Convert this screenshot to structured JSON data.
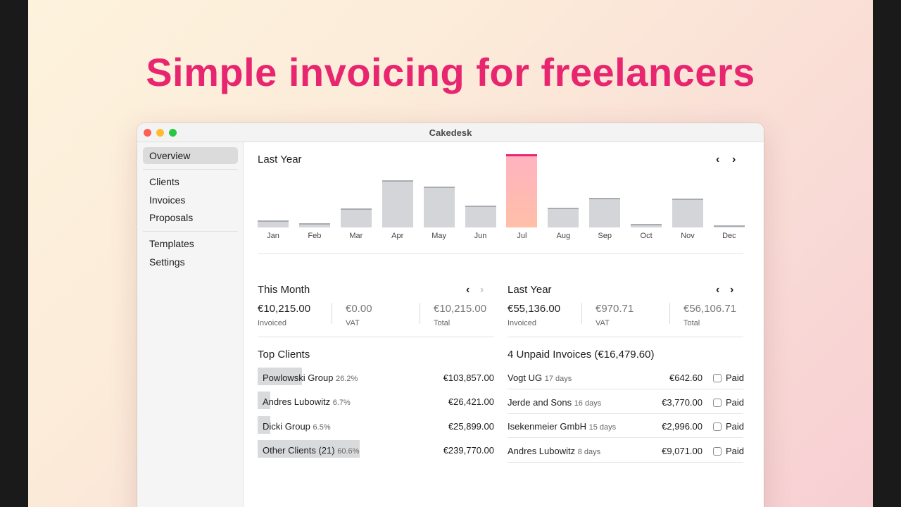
{
  "headline": "Simple invoicing for freelancers",
  "window_title": "Cakedesk",
  "sidebar": {
    "items": [
      {
        "label": "Overview",
        "active": true
      },
      {
        "label": "Clients"
      },
      {
        "label": "Invoices"
      },
      {
        "label": "Proposals"
      },
      {
        "label": "Templates"
      },
      {
        "label": "Settings"
      }
    ]
  },
  "chart": {
    "title": "Last Year",
    "prev_icon": "chevron-left-icon",
    "next_icon": "chevron-right-icon"
  },
  "chart_data": {
    "type": "bar",
    "title": "Last Year",
    "categories": [
      "Jan",
      "Feb",
      "Mar",
      "Apr",
      "May",
      "Jun",
      "Jul",
      "Aug",
      "Sep",
      "Oct",
      "Nov",
      "Dec"
    ],
    "values": [
      1000,
      600,
      2600,
      6600,
      5700,
      3000,
      10200,
      2700,
      4100,
      500,
      4000,
      200
    ],
    "highlight": "Jul",
    "highlight_color": "#e8256f",
    "bar_color": "#d3d5d9",
    "ylim": [
      0,
      10200
    ],
    "grid": false,
    "legend": "none"
  },
  "this_month": {
    "title": "This Month",
    "invoiced_value": "€10,215.00",
    "invoiced_label": "Invoiced",
    "vat_value": "€0.00",
    "vat_label": "VAT",
    "total_value": "€10,215.00",
    "total_label": "Total"
  },
  "last_year": {
    "title": "Last Year",
    "invoiced_value": "€55,136.00",
    "invoiced_label": "Invoiced",
    "vat_value": "€970.71",
    "vat_label": "VAT",
    "total_value": "€56,106.71",
    "total_label": "Total"
  },
  "top_clients": {
    "title": "Top Clients",
    "rows": [
      {
        "name": "Powlowski Group",
        "pct": "26.2%",
        "share": 26.2,
        "amount": "€103,857.00"
      },
      {
        "name": "Andres Lubowitz",
        "pct": "6.7%",
        "share": 6.7,
        "amount": "€26,421.00"
      },
      {
        "name": "Dicki Group",
        "pct": "6.5%",
        "share": 6.5,
        "amount": "€25,899.00"
      },
      {
        "name": "Other Clients (21)",
        "pct": "60.6%",
        "share": 60.6,
        "amount": "€239,770.00"
      }
    ]
  },
  "unpaid": {
    "title": "4 Unpaid Invoices (€16,479.60)",
    "paid_label": "Paid",
    "rows": [
      {
        "client": "Vogt UG",
        "days": "17 days",
        "amount": "€642.60"
      },
      {
        "client": "Jerde and Sons",
        "days": "16 days",
        "amount": "€3,770.00"
      },
      {
        "client": "Isekenmeier GmbH",
        "days": "15 days",
        "amount": "€2,996.00"
      },
      {
        "client": "Andres Lubowitz",
        "days": "8 days",
        "amount": "€9,071.00"
      }
    ]
  }
}
